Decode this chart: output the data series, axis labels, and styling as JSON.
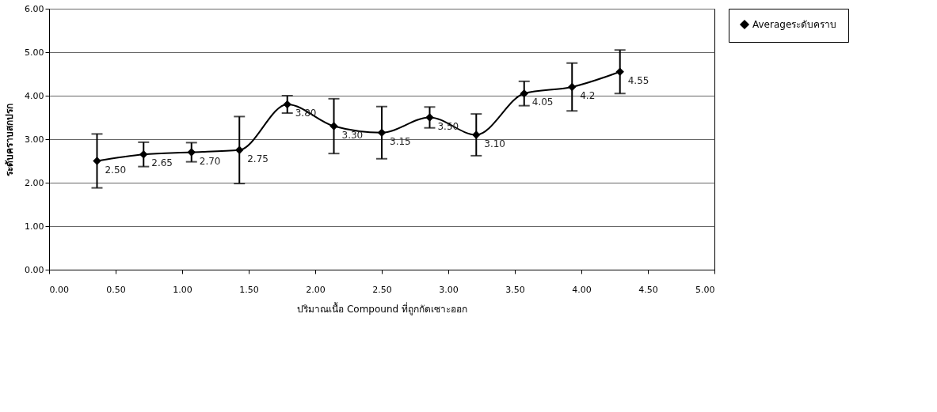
{
  "chart_data": {
    "type": "line",
    "xlabel": "ปริมาณเนื้อ Compound ที่ถูกกัดเซาะออก",
    "ylabel": "ระดับคราบสกปรก",
    "x": [
      0.36,
      0.71,
      1.07,
      1.43,
      1.79,
      2.14,
      2.5,
      2.86,
      3.21,
      3.57,
      3.93,
      4.29
    ],
    "series": [
      {
        "name": "Averageระดับคราบ",
        "color": "#000000",
        "values": [
          2.5,
          2.65,
          2.7,
          2.75,
          3.8,
          3.3,
          3.15,
          3.5,
          3.1,
          4.05,
          4.2,
          4.55
        ],
        "errors": [
          0.62,
          0.28,
          0.22,
          0.77,
          0.2,
          0.63,
          0.6,
          0.24,
          0.48,
          0.28,
          0.55,
          0.5
        ],
        "value_labels": [
          "2.50",
          "2.65",
          "2.70",
          "2.75",
          "3.80",
          "3.30",
          "3.15",
          "3.50",
          "3.10",
          "4.05",
          "4.2",
          "4.55"
        ]
      }
    ],
    "xlim": [
      0,
      5
    ],
    "xticks": [
      {
        "value": 0,
        "label": "0.00"
      },
      {
        "value": 0.5,
        "label": "0.50"
      },
      {
        "value": 1,
        "label": "1.00"
      },
      {
        "value": 1.5,
        "label": "1.50"
      },
      {
        "value": 2,
        "label": "2.00"
      },
      {
        "value": 2.5,
        "label": "2.50"
      },
      {
        "value": 3,
        "label": "3.00"
      },
      {
        "value": 3.5,
        "label": "3.50"
      },
      {
        "value": 4,
        "label": "4.00"
      },
      {
        "value": 4.5,
        "label": "4.50"
      },
      {
        "value": 5,
        "label": "5.00"
      }
    ],
    "ylim": [
      0,
      6
    ],
    "yticks": [
      {
        "value": 0,
        "label": "0.00"
      },
      {
        "value": 1,
        "label": "1.00"
      },
      {
        "value": 2,
        "label": "2.00"
      },
      {
        "value": 3,
        "label": "3.00"
      },
      {
        "value": 4,
        "label": "4.00"
      },
      {
        "value": 5,
        "label": "5.00"
      },
      {
        "value": 6,
        "label": "6.00"
      }
    ],
    "grid": "y",
    "legend": "right",
    "marker": "diamond",
    "line_style": "solid"
  }
}
